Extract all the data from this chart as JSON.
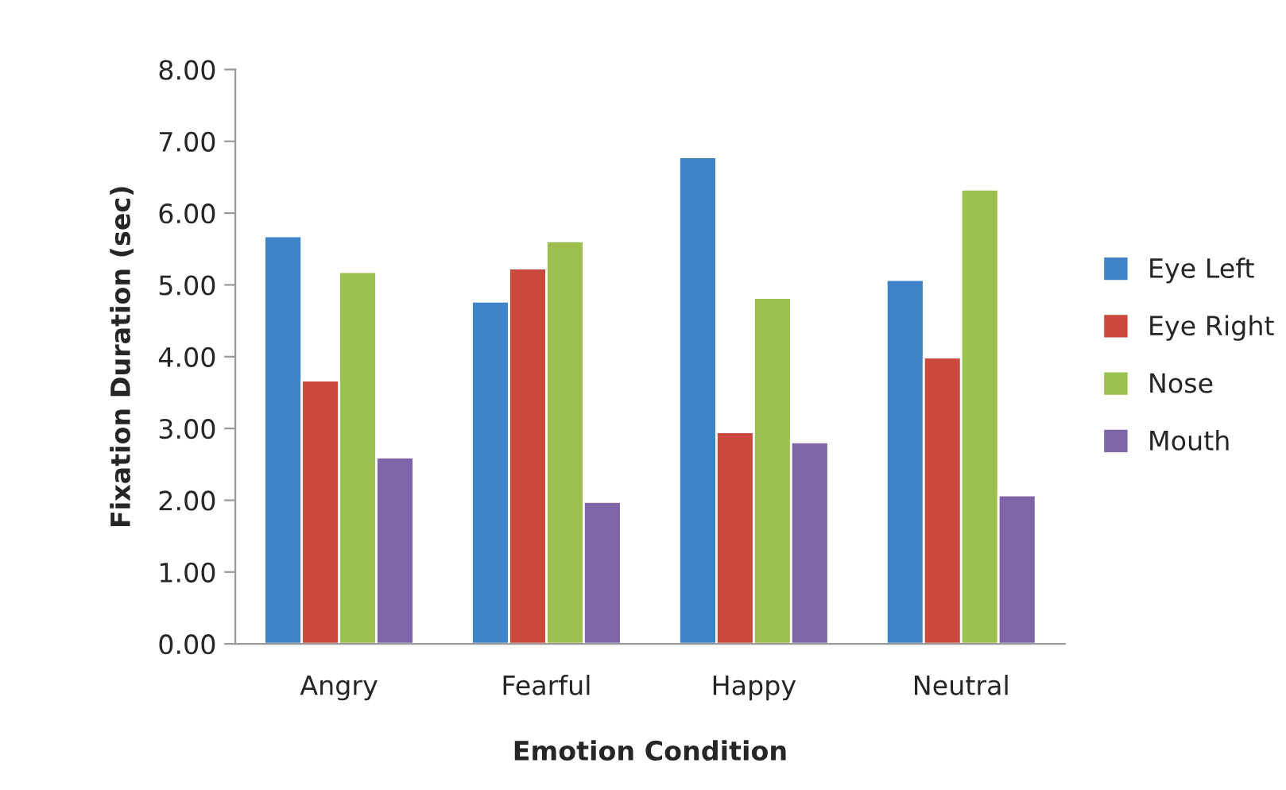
{
  "chart_data": {
    "type": "bar",
    "xlabel": "Emotion Condition",
    "ylabel": "Fixation Duration (sec)",
    "categories": [
      "Angry",
      "Fearful",
      "Happy",
      "Neutral"
    ],
    "series": [
      {
        "name": "Eye Left",
        "color": "#3f84c8",
        "values": [
          5.68,
          4.77,
          6.78,
          5.07
        ]
      },
      {
        "name": "Eye Right",
        "color": "#cc4a3d",
        "values": [
          3.67,
          5.23,
          2.95,
          3.99
        ]
      },
      {
        "name": "Nose",
        "color": "#9cc050",
        "values": [
          5.18,
          5.61,
          4.82,
          6.33
        ]
      },
      {
        "name": "Mouth",
        "color": "#8064a8",
        "values": [
          2.6,
          1.98,
          2.81,
          2.07
        ]
      }
    ],
    "ylim": [
      0,
      8
    ],
    "yticks": [
      {
        "value": 0,
        "label": "0.00"
      },
      {
        "value": 1,
        "label": "1.00"
      },
      {
        "value": 2,
        "label": "2.00"
      },
      {
        "value": 3,
        "label": "3.00"
      },
      {
        "value": 4,
        "label": "4.00"
      },
      {
        "value": 5,
        "label": "5.00"
      },
      {
        "value": 6,
        "label": "6.00"
      },
      {
        "value": 7,
        "label": "7.00"
      },
      {
        "value": 8,
        "label": "8.00"
      }
    ],
    "grid": false,
    "legend": "right"
  }
}
